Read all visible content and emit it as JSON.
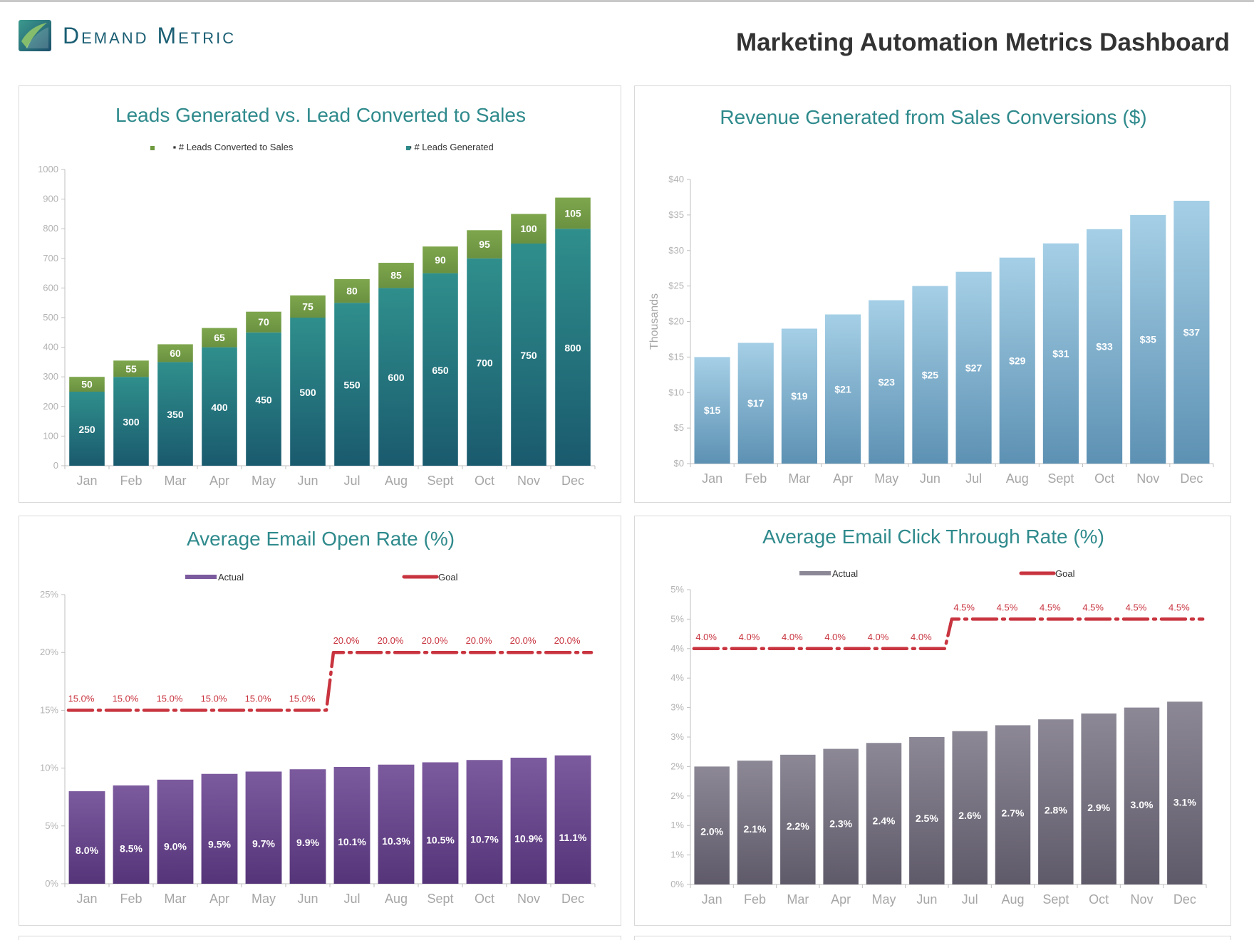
{
  "brand": {
    "name": "Demand Metric"
  },
  "page_title": "Marketing Automation Metrics Dashboard",
  "colors": {
    "teal": "#2e8a89",
    "green": "#6f9a3f",
    "blue": "#8fc0da",
    "purple": "#6f4a90",
    "gray": "#7a7586",
    "goal_red": "#c8343f",
    "title_teal": "#2f8a8c"
  },
  "chart_data": [
    {
      "type": "bar",
      "stacked": true,
      "title": "Leads Generated vs. Lead Converted to Sales",
      "categories": [
        "Jan",
        "Feb",
        "Mar",
        "Apr",
        "May",
        "Jun",
        "Jul",
        "Aug",
        "Sept",
        "Oct",
        "Nov",
        "Dec"
      ],
      "series": [
        {
          "name": "# Leads Generated",
          "values": [
            250,
            300,
            350,
            400,
            450,
            500,
            550,
            600,
            650,
            700,
            750,
            800
          ]
        },
        {
          "name": "# Leads Converted to Sales",
          "values": [
            50,
            55,
            60,
            65,
            70,
            75,
            80,
            85,
            90,
            95,
            100,
            105
          ]
        }
      ],
      "y_ticks": [
        "0",
        "100",
        "200",
        "300",
        "400",
        "500",
        "600",
        "700",
        "800",
        "900",
        "1000"
      ],
      "ylim": [
        0,
        1000
      ],
      "legend": "top"
    },
    {
      "type": "bar",
      "title": "Revenue Generated from Sales Conversions ($)",
      "ylabel": "Thousands",
      "categories": [
        "Jan",
        "Feb",
        "Mar",
        "Apr",
        "May",
        "Jun",
        "Jul",
        "Aug",
        "Sept",
        "Oct",
        "Nov",
        "Dec"
      ],
      "values": [
        15,
        17,
        19,
        21,
        23,
        25,
        27,
        29,
        31,
        33,
        35,
        37
      ],
      "value_labels": [
        "$15",
        "$17",
        "$19",
        "$21",
        "$23",
        "$25",
        "$27",
        "$29",
        "$31",
        "$33",
        "$35",
        "$37"
      ],
      "y_ticks": [
        "$0",
        "$5",
        "$10",
        "$15",
        "$20",
        "$25",
        "$30",
        "$35",
        "$40"
      ],
      "ylim": [
        0,
        40
      ]
    },
    {
      "type": "bar",
      "title": "Average Email Open Rate (%)",
      "categories": [
        "Jan",
        "Feb",
        "Mar",
        "Apr",
        "May",
        "Jun",
        "Jul",
        "Aug",
        "Sept",
        "Oct",
        "Nov",
        "Dec"
      ],
      "series": [
        {
          "name": "Actual",
          "values": [
            8.0,
            8.5,
            9.0,
            9.5,
            9.7,
            9.9,
            10.1,
            10.3,
            10.5,
            10.7,
            10.9,
            11.1
          ],
          "labels": [
            "8.0%",
            "8.5%",
            "9.0%",
            "9.5%",
            "9.7%",
            "9.9%",
            "10.1%",
            "10.3%",
            "10.5%",
            "10.7%",
            "10.9%",
            "11.1%"
          ]
        },
        {
          "name": "Goal",
          "type": "line",
          "values": [
            15,
            15,
            15,
            15,
            15,
            15,
            20,
            20,
            20,
            20,
            20,
            20
          ],
          "labels": [
            "15.0%",
            "15.0%",
            "15.0%",
            "15.0%",
            "15.0%",
            "15.0%",
            "20.0%",
            "20.0%",
            "20.0%",
            "20.0%",
            "20.0%",
            "20.0%"
          ]
        }
      ],
      "y_ticks": [
        "0%",
        "5%",
        "10%",
        "15%",
        "20%",
        "25%"
      ],
      "ylim": [
        0,
        25
      ],
      "legend": "top"
    },
    {
      "type": "bar",
      "title": "Average Email Click Through Rate (%)",
      "categories": [
        "Jan",
        "Feb",
        "Mar",
        "Apr",
        "May",
        "Jun",
        "Jul",
        "Aug",
        "Sept",
        "Oct",
        "Nov",
        "Dec"
      ],
      "series": [
        {
          "name": "Actual",
          "values": [
            2.0,
            2.1,
            2.2,
            2.3,
            2.4,
            2.5,
            2.6,
            2.7,
            2.8,
            2.9,
            3.0,
            3.1
          ],
          "labels": [
            "2.0%",
            "2.1%",
            "2.2%",
            "2.3%",
            "2.4%",
            "2.5%",
            "2.6%",
            "2.7%",
            "2.8%",
            "2.9%",
            "3.0%",
            "3.1%"
          ]
        },
        {
          "name": "Goal",
          "type": "line",
          "values": [
            4,
            4,
            4,
            4,
            4,
            4,
            4.5,
            4.5,
            4.5,
            4.5,
            4.5,
            4.5
          ],
          "labels": [
            "4.0%",
            "4.0%",
            "4.0%",
            "4.0%",
            "4.0%",
            "4.0%",
            "4.5%",
            "4.5%",
            "4.5%",
            "4.5%",
            "4.5%",
            "4.5%"
          ]
        }
      ],
      "y_ticks": [
        "0%",
        "1%",
        "1%",
        "2%",
        "2%",
        "3%",
        "3%",
        "4%",
        "4%",
        "5%",
        "5%"
      ],
      "ylim": [
        0,
        5
      ],
      "legend": "top"
    }
  ]
}
